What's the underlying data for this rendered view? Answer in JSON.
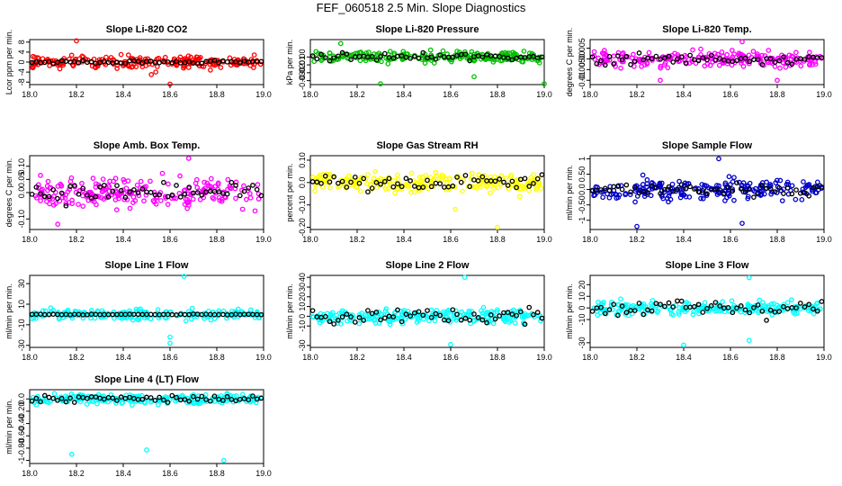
{
  "title": "FEF_060518  2.5 Min. Slope Diagnostics",
  "chart_data": [
    {
      "id": "co2",
      "type": "scatter",
      "title": "Slope Li-820 CO2",
      "ylabel": "Lcor ppm per min.",
      "color": "#ff0000",
      "xlim": [
        18.0,
        19.0
      ],
      "ylim": [
        -9,
        9
      ],
      "xticks": [
        "18.0",
        "18.2",
        "18.4",
        "18.6",
        "18.8",
        "19.0"
      ],
      "yticks": [
        -8,
        -4,
        0,
        4,
        8
      ],
      "spread": 2.2,
      "outliers": [
        [
          18.2,
          8.5
        ],
        [
          18.6,
          -8.8
        ],
        [
          18.52,
          -5
        ]
      ],
      "black_spread": 0.6
    },
    {
      "id": "pressure",
      "type": "scatter",
      "title": "Slope Li-820 Pressure",
      "ylabel": "kPa per min.",
      "color": "#00c000",
      "xlim": [
        18.0,
        19.0
      ],
      "ylim": [
        -0.035,
        0.022
      ],
      "xticks": [
        "18.0",
        "18.2",
        "18.4",
        "18.6",
        "18.8",
        "19.0"
      ],
      "yticks": [
        -0.03,
        -0.02,
        -0.01,
        0.0
      ],
      "spread": 0.006,
      "outliers": [
        [
          18.13,
          0.017
        ],
        [
          18.7,
          -0.025
        ],
        [
          18.3,
          -0.034
        ],
        [
          19.0,
          -0.034
        ]
      ],
      "black_spread": 0.004
    },
    {
      "id": "temp",
      "type": "scatter",
      "title": "Slope Li-820 Temp.",
      "ylabel": "degrees C per min.",
      "color": "#ff00ff",
      "xlim": [
        18.0,
        19.0
      ],
      "ylim": [
        -0.012,
        0.009
      ],
      "xticks": [
        "18.0",
        "18.2",
        "18.4",
        "18.6",
        "18.8",
        "19.0"
      ],
      "yticks": [
        -0.01,
        -0.005,
        0.0,
        0.005
      ],
      "spread": 0.003,
      "outliers": [
        [
          18.3,
          -0.01
        ],
        [
          18.8,
          -0.01
        ],
        [
          18.65,
          0.008
        ]
      ],
      "black_spread": 0.002
    },
    {
      "id": "ambtemp",
      "type": "scatter",
      "title": "Slope Amb. Box Temp.",
      "ylabel": "degrees C per min.",
      "color": "#ff00ff",
      "xlim": [
        18.0,
        19.0
      ],
      "ylim": [
        -0.14,
        0.14
      ],
      "xticks": [
        "18.0",
        "18.2",
        "18.4",
        "18.6",
        "18.8",
        "19.0"
      ],
      "yticks": [
        -0.1,
        0.0,
        0.05,
        0.1
      ],
      "spread": 0.045,
      "outliers": [
        [
          18.68,
          0.13
        ],
        [
          18.12,
          -0.12
        ]
      ],
      "black_spread": 0.03
    },
    {
      "id": "rh",
      "type": "scatter",
      "title": "Slope Gas Stream RH",
      "ylabel": "percent per min.",
      "color": "#ffff00",
      "xlim": [
        18.0,
        19.0
      ],
      "ylim": [
        -0.21,
        0.12
      ],
      "xticks": [
        "18.0",
        "18.2",
        "18.4",
        "18.6",
        "18.8",
        "19.0"
      ],
      "yticks": [
        -0.2,
        -0.1,
        0.0,
        0.1
      ],
      "spread": 0.035,
      "outliers": [
        [
          18.8,
          -0.2
        ],
        [
          18.62,
          -0.12
        ]
      ],
      "black_spread": 0.03
    },
    {
      "id": "sampleflow",
      "type": "scatter",
      "title": "Slope Sample Flow",
      "ylabel": "ml/min per min.",
      "color": "#0000cc",
      "xlim": [
        18.0,
        19.0
      ],
      "ylim": [
        -1.3,
        1.1
      ],
      "xticks": [
        "18.0",
        "18.2",
        "18.4",
        "18.6",
        "18.8",
        "19.0"
      ],
      "yticks": [
        -1.0,
        -0.5,
        0.0,
        0.5,
        1.0
      ],
      "spread": 0.3,
      "outliers": [
        [
          18.2,
          -1.2
        ],
        [
          18.55,
          1.0
        ],
        [
          18.65,
          -1.1
        ]
      ],
      "black_spread": 0.2
    },
    {
      "id": "line1",
      "type": "scatter",
      "title": "Slope Line 1 Flow",
      "ylabel": "ml/min per min.",
      "color": "#00ffff",
      "xlim": [
        18.0,
        19.0
      ],
      "ylim": [
        -32,
        38
      ],
      "xticks": [
        "18.0",
        "18.2",
        "18.4",
        "18.6",
        "18.8",
        "19.0"
      ],
      "yticks": [
        -30,
        -10,
        10,
        30
      ],
      "spread": 4,
      "outliers": [
        [
          18.66,
          37
        ],
        [
          18.6,
          -28
        ],
        [
          18.6,
          -22
        ]
      ],
      "black_spread": 0.3
    },
    {
      "id": "line2",
      "type": "scatter",
      "title": "Slope Line 2 Flow",
      "ylabel": "ml/min per min.",
      "color": "#00ffff",
      "xlim": [
        18.0,
        19.0
      ],
      "ylim": [
        -32,
        42
      ],
      "xticks": [
        "18.0",
        "18.2",
        "18.4",
        "18.6",
        "18.8",
        "19.0"
      ],
      "yticks": [
        -30,
        -10,
        0,
        10,
        20,
        30,
        40
      ],
      "spread": 6,
      "outliers": [
        [
          18.66,
          40
        ],
        [
          18.6,
          -29
        ]
      ],
      "black_spread": 7
    },
    {
      "id": "line3",
      "type": "scatter",
      "title": "Slope Line 3 Flow",
      "ylabel": "ml/min per min.",
      "color": "#00ffff",
      "xlim": [
        18.0,
        19.0
      ],
      "ylim": [
        -34,
        28
      ],
      "xticks": [
        "18.0",
        "18.2",
        "18.4",
        "18.6",
        "18.8",
        "19.0"
      ],
      "yticks": [
        -30,
        -10,
        0,
        10,
        20
      ],
      "spread": 5,
      "outliers": [
        [
          18.68,
          26
        ],
        [
          18.4,
          -32
        ],
        [
          18.68,
          -28
        ]
      ],
      "black_spread": 7
    },
    {
      "id": "line4",
      "type": "scatter",
      "title": "Slope Line 4 (LT) Flow",
      "ylabel": "ml/min per min.",
      "color": "#00ffff",
      "xlim": [
        18.0,
        19.0
      ],
      "ylim": [
        -1.05,
        0.15
      ],
      "xticks": [
        "18.0",
        "18.2",
        "18.4",
        "18.6",
        "18.8",
        "19.0"
      ],
      "yticks": [
        -1.0,
        -0.8,
        -0.6,
        -0.4,
        -0.2,
        0.0
      ],
      "spread": 0.06,
      "outliers": [
        [
          18.18,
          -0.9
        ],
        [
          18.5,
          -0.83
        ],
        [
          18.83,
          -1.0
        ]
      ],
      "black_spread": 0.05
    }
  ]
}
